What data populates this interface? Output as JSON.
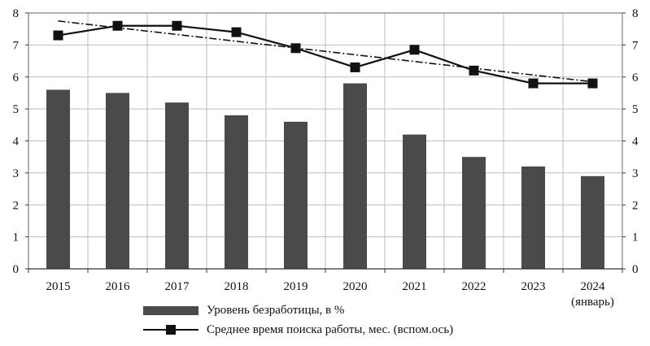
{
  "chart_data": {
    "type": "bar",
    "categories": [
      "2015",
      "2016",
      "2017",
      "2018",
      "2019",
      "2020",
      "2021",
      "2022",
      "2023",
      "2024"
    ],
    "category_sublabels": [
      "",
      "",
      "",
      "",
      "",
      "",
      "",
      "",
      "",
      "(январь)"
    ],
    "series": [
      {
        "name": "Уровень безработицы, в %",
        "type": "bar",
        "axis": "primary",
        "color": "#4a4a4a",
        "values": [
          5.6,
          5.5,
          5.2,
          4.8,
          4.6,
          5.8,
          4.2,
          3.5,
          3.2,
          2.9
        ]
      },
      {
        "name": "Среднее время поиска работы, мес. (вспом.ось)",
        "type": "line",
        "axis": "secondary",
        "color": "#111111",
        "marker": "square",
        "values": [
          7.3,
          7.6,
          7.6,
          7.4,
          6.9,
          6.3,
          6.85,
          6.2,
          5.8,
          5.8
        ]
      }
    ],
    "trendline": {
      "of_series": 1,
      "style": "dash-dot",
      "start": 7.75,
      "end": 5.85
    },
    "y_ticks": [
      "0",
      "1",
      "2",
      "3",
      "4",
      "5",
      "6",
      "7",
      "8"
    ],
    "y2_ticks": [
      "0",
      "1",
      "2",
      "3",
      "4",
      "5",
      "6",
      "7",
      "8"
    ],
    "ylim": [
      0,
      8
    ],
    "y2lim": [
      0,
      8
    ],
    "grid": true,
    "legend_position": "bottom"
  }
}
